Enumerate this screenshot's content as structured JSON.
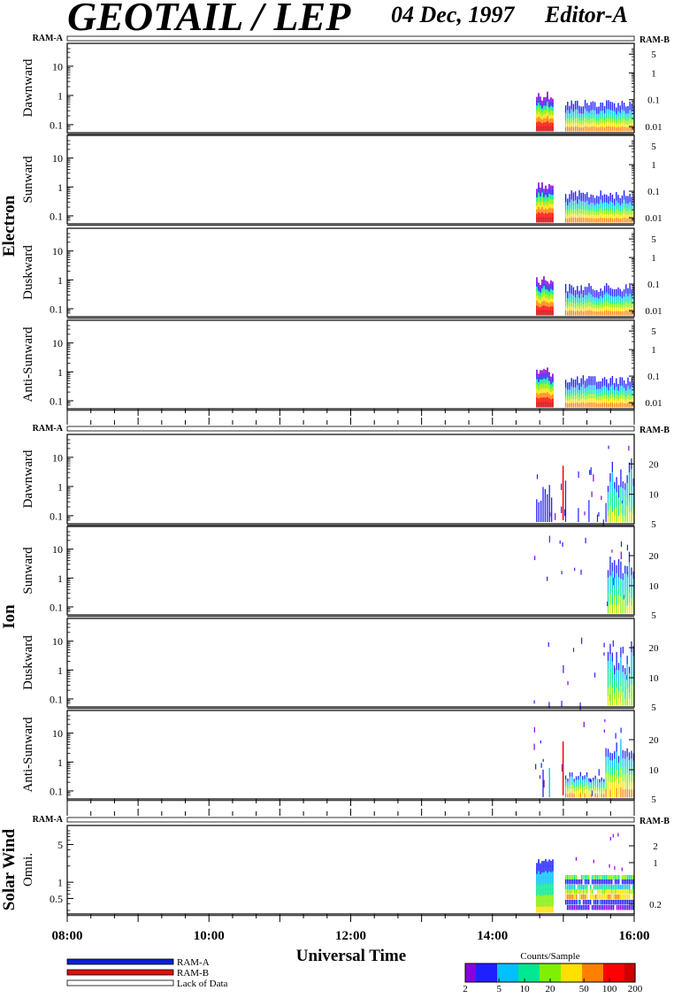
{
  "header": {
    "instrument": "GEOTAIL / LEP",
    "date": "04 Dec, 1997",
    "mode": "Editor-A"
  },
  "colors": {
    "ram_a": "#0a1fd0",
    "ram_b": "#e01010",
    "colorbar_stops": [
      "#8a00e0",
      "#2020ff",
      "#00c0ff",
      "#00e890",
      "#80f000",
      "#ffe000",
      "#ff8000",
      "#ff0000",
      "#d00000"
    ]
  },
  "chart_data": {
    "type": "heatmap",
    "x_axis": {
      "label": "Universal Time",
      "range": [
        "08:00",
        "16:00"
      ],
      "tick_labels": [
        "08:00",
        "10:00",
        "12:00",
        "14:00",
        "16:00"
      ]
    },
    "mode_bar": {
      "left_label": "RAM-A",
      "right_label": "RAM-B",
      "data_start": "14:37",
      "gap": [
        "14:52",
        "15:00"
      ],
      "data_end": "16:00"
    },
    "groups": [
      {
        "name": "Electron",
        "panels": [
          {
            "label": "Dawnward",
            "left_ticks": [
              "10",
              "1",
              "0.1"
            ],
            "right_ticks": [
              "5",
              "1",
              "0.1",
              "0.01"
            ]
          },
          {
            "label": "Sunward",
            "left_ticks": [
              "10",
              "1",
              "0.1"
            ],
            "right_ticks": [
              "5",
              "1",
              "0.1",
              "0.01"
            ]
          },
          {
            "label": "Duskward",
            "left_ticks": [
              "10",
              "1",
              "0.1"
            ],
            "right_ticks": [
              "5",
              "1",
              "0.1",
              "0.01"
            ]
          },
          {
            "label": "Anti-Sunward",
            "left_ticks": [
              "10",
              "1",
              "0.1"
            ],
            "right_ticks": [
              "5",
              "1",
              "0.1",
              "0.01"
            ]
          }
        ]
      },
      {
        "name": "Ion",
        "panels": [
          {
            "label": "Dawnward",
            "left_ticks": [
              "10",
              "1",
              "0.1"
            ],
            "right_ticks": [
              "20",
              "10",
              "5"
            ]
          },
          {
            "label": "Sunward",
            "left_ticks": [
              "10",
              "1",
              "0.1"
            ],
            "right_ticks": [
              "20",
              "10",
              "5"
            ]
          },
          {
            "label": "Duskward",
            "left_ticks": [
              "10",
              "1",
              "0.1"
            ],
            "right_ticks": [
              "20",
              "10",
              "5"
            ]
          },
          {
            "label": "Anti-Sunward",
            "left_ticks": [
              "10",
              "1",
              "0.1"
            ],
            "right_ticks": [
              "20",
              "10",
              "5"
            ]
          }
        ]
      },
      {
        "name": "Solar Wind",
        "panels": [
          {
            "label": "Omni.",
            "left_ticks": [
              "5",
              "1",
              "0.5"
            ],
            "right_ticks": [
              "2",
              "1",
              "0.2"
            ]
          }
        ]
      }
    ],
    "legend": {
      "ram_a": "RAM-A",
      "ram_b": "RAM-B",
      "lack": "Lack of Data"
    },
    "colorbar": {
      "title": "Counts/Sample",
      "tick_labels": [
        "2",
        "5",
        "10",
        "20",
        "50",
        "100",
        "200"
      ],
      "scale": "log"
    }
  }
}
